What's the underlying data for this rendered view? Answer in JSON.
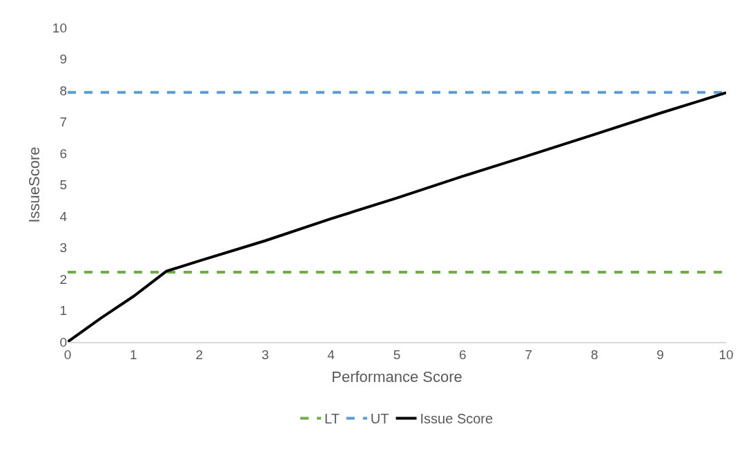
{
  "chart_data": {
    "type": "line",
    "xlabel": "Performance Score",
    "ylabel": "IssueScore",
    "xlim": [
      0,
      10
    ],
    "xticks": [
      0,
      1,
      2,
      3,
      4,
      5,
      6,
      7,
      8,
      9,
      10
    ],
    "ylim": [
      0,
      10
    ],
    "yticks": [
      0,
      1,
      2,
      3,
      4,
      5,
      6,
      7,
      8,
      9,
      10
    ],
    "legend": "bottom",
    "marker": "none",
    "series": [
      {
        "name": "LT",
        "color": "#70ad47",
        "line_style": "dashed",
        "x": [
          0,
          10
        ],
        "values": [
          2.22,
          2.22
        ]
      },
      {
        "name": "UT",
        "color": "#5b9bd5",
        "line_style": "dashed",
        "x": [
          0,
          10
        ],
        "values": [
          7.94,
          7.94
        ]
      },
      {
        "name": "Issue Score",
        "color": "#000000",
        "line_style": "solid",
        "x": [
          0,
          0.5,
          1,
          1.5,
          2,
          3,
          4,
          5,
          6,
          7,
          8,
          9,
          10
        ],
        "values": [
          0,
          0.75,
          1.45,
          2.25,
          2.58,
          3.22,
          3.92,
          4.58,
          5.27,
          5.93,
          6.6,
          7.28,
          7.93
        ]
      }
    ]
  }
}
